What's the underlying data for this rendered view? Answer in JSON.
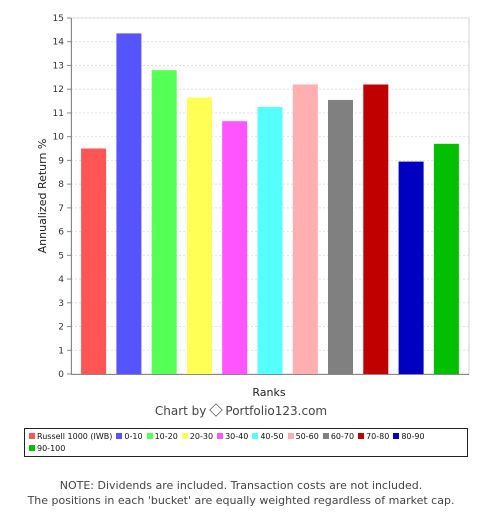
{
  "chart_data": {
    "type": "bar",
    "ylabel": "Annualized Return %",
    "xlabel": "Ranks",
    "ylim": [
      0,
      15
    ],
    "yticks": [
      0,
      1,
      2,
      3,
      4,
      5,
      6,
      7,
      8,
      9,
      10,
      11,
      12,
      13,
      14,
      15
    ],
    "grid": true,
    "series": [
      {
        "name": "Russell 1000 (IWB)",
        "value": 9.5,
        "color": "#ff5555"
      },
      {
        "name": "0-10",
        "value": 14.35,
        "color": "#5555ff"
      },
      {
        "name": "10-20",
        "value": 12.8,
        "color": "#55ff55"
      },
      {
        "name": "20-30",
        "value": 11.65,
        "color": "#ffff55"
      },
      {
        "name": "30-40",
        "value": 10.65,
        "color": "#ff55ff"
      },
      {
        "name": "40-50",
        "value": 11.25,
        "color": "#55ffff"
      },
      {
        "name": "50-60",
        "value": 12.2,
        "color": "#ffafaf"
      },
      {
        "name": "60-70",
        "value": 11.55,
        "color": "#808080"
      },
      {
        "name": "70-80",
        "value": 12.2,
        "color": "#c00000"
      },
      {
        "name": "80-90",
        "value": 8.95,
        "color": "#0000c0"
      },
      {
        "name": "90-100",
        "value": 9.7,
        "color": "#00c000"
      }
    ]
  },
  "credit": {
    "prefix": "Chart by",
    "brand": "Portfolio123.com"
  },
  "note": {
    "line1": "NOTE: Dividends are included. Transaction costs are not included.",
    "line2": "The positions in each 'bucket' are equally weighted regardless of market cap."
  }
}
